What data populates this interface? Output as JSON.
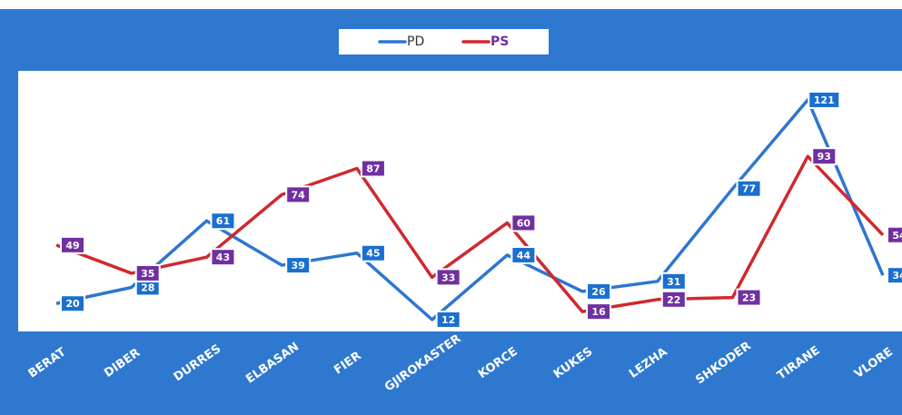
{
  "chart_data": {
    "type": "line",
    "categories": [
      "BERAT",
      "DIBER",
      "DURRES",
      "ELBASAN",
      "FIER",
      "GJIROKASTER",
      "KORCE",
      "KUKES",
      "LEZHA",
      "SHKODER",
      "TIRANE",
      "VLORE"
    ],
    "series": [
      {
        "name": "PD",
        "color": "#2e75d0",
        "values": [
          20,
          28,
          61,
          39,
          45,
          12,
          44,
          26,
          31,
          77,
          121,
          34
        ]
      },
      {
        "name": "PS",
        "color": "#d0282e",
        "values": [
          49,
          35,
          43,
          74,
          87,
          33,
          60,
          16,
          22,
          23,
          93,
          54
        ]
      }
    ]
  }
}
